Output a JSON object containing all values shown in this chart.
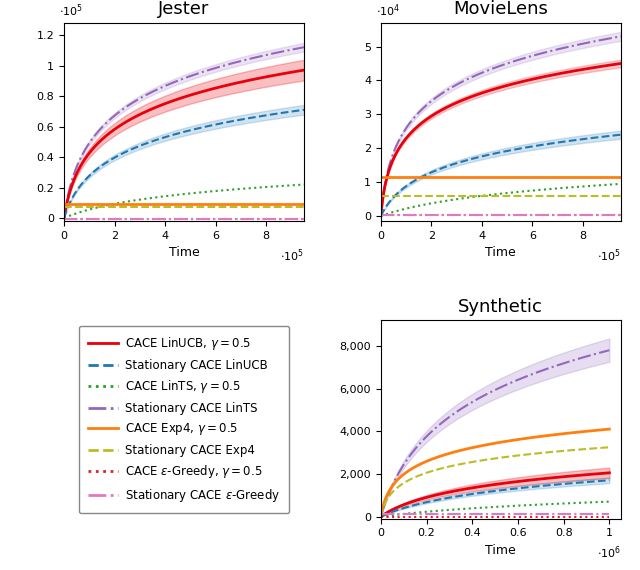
{
  "jester": {
    "title": "Jester",
    "xlabel": "Time",
    "xlim": [
      0,
      950000.0
    ],
    "ylim": [
      -2000.0,
      128000.0
    ],
    "xticks": [
      0,
      200000.0,
      400000.0,
      600000.0,
      800000.0
    ],
    "xticklabels": [
      "0",
      "2",
      "4",
      "6",
      "8"
    ],
    "yticks": [
      0,
      20000.0,
      40000.0,
      60000.0,
      80000.0,
      100000.0,
      120000.0
    ],
    "yticklabels": [
      "0",
      "0.2",
      "0.4",
      "0.6",
      "0.8",
      "1",
      "1.2"
    ],
    "xscale_exp": 5,
    "yscale_exp": 5
  },
  "movielens": {
    "title": "MovieLens",
    "xlabel": "Time",
    "xlim": [
      0,
      950000.0
    ],
    "ylim": [
      -1500.0,
      57000.0
    ],
    "xticks": [
      0,
      200000.0,
      400000.0,
      600000.0,
      800000.0
    ],
    "xticklabels": [
      "0",
      "2",
      "4",
      "6",
      "8"
    ],
    "yticks": [
      0,
      10000.0,
      20000.0,
      30000.0,
      40000.0,
      50000.0
    ],
    "yticklabels": [
      "0",
      "1",
      "2",
      "3",
      "4",
      "5"
    ],
    "xscale_exp": 5,
    "yscale_exp": 4
  },
  "synthetic": {
    "title": "Synthetic",
    "xlabel": "Time",
    "xlim": [
      0,
      1050000.0
    ],
    "ylim": [
      -100,
      9200
    ],
    "xticks": [
      0,
      200000.0,
      400000.0,
      600000.0,
      800000.0,
      1000000.0
    ],
    "xticklabels": [
      "0",
      "0.2",
      "0.4",
      "0.6",
      "0.8",
      "1"
    ],
    "yticks": [
      0,
      2000,
      4000,
      6000,
      8000
    ],
    "yticklabels": [
      "0",
      "2,000",
      "4,000",
      "6,000",
      "8,000"
    ],
    "xscale_exp": 6
  },
  "colors": {
    "linucb": "#e8000b",
    "stat_linucb": "#1f77b4",
    "lints": "#2ca02c",
    "stat_lints": "#9467bd",
    "exp4": "#ff7f0e",
    "stat_exp4": "#bcbd22",
    "egreedy": "#d62728",
    "stat_egreedy": "#e377c2"
  },
  "legend_entries": [
    {
      "label": "CACE L\\textsc{in}UCB, $\\gamma = 0.5$",
      "color": "#e8000b",
      "ls": "-",
      "lw": 2.0
    },
    {
      "label": "Stationary CACE L\\textsc{in}UCB",
      "color": "#1f77b4",
      "ls": "--",
      "lw": 2.0
    },
    {
      "label": "CACE L\\textsc{in}TS, $\\gamma = 0.5$",
      "color": "#2ca02c",
      "ls": ":",
      "lw": 2.0
    },
    {
      "label": "Stationary CACE L\\textsc{in}TS",
      "color": "#9467bd",
      "ls": "-.",
      "lw": 2.0
    },
    {
      "label": "CACE E\\textsc{xp}4, $\\gamma = 0.5$",
      "color": "#ff7f0e",
      "ls": "-",
      "lw": 2.0
    },
    {
      "label": "Stationary CACE E\\textsc{xp}4",
      "color": "#bcbd22",
      "ls": "--",
      "lw": 2.0
    },
    {
      "label": "CACE $\\varepsilon$-G\\textsc{reedy}, $\\gamma = 0.5$",
      "color": "#d62728",
      "ls": ":",
      "lw": 2.0
    },
    {
      "label": "Stationary CACE $\\varepsilon$-G\\textsc{reedy}",
      "color": "#e377c2",
      "ls": "-.",
      "lw": 2.0
    }
  ]
}
